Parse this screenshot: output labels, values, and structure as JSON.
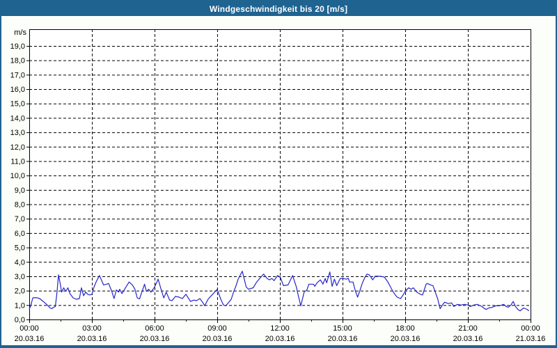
{
  "window": {
    "title": "Windgeschwindigkeit bis 20 [m/s]"
  },
  "colors": {
    "titlebar_bg": "#1F6391",
    "window_border": "#1F6391",
    "title_text": "#FFFFFF",
    "canvas_bg": "#FCFEF9",
    "plot_bg": "#FFFFFF",
    "plot_frame": "#000000",
    "grid": "#000000",
    "axis_text": "#000000",
    "line": "#2424CC"
  },
  "chart_data": {
    "type": "line",
    "title": "Windgeschwindigkeit bis 20 [m/s]",
    "y_unit": "m/s",
    "ylim": [
      0,
      20
    ],
    "xlim_hours": [
      0,
      24
    ],
    "grid": "dashed",
    "legend": "none",
    "y_tick_labels": [
      "0,0",
      "1,0",
      "2,0",
      "3,0",
      "4,0",
      "5,0",
      "6,0",
      "7,0",
      "8,0",
      "9,0",
      "10,0",
      "11,0",
      "12,0",
      "13,0",
      "14,0",
      "15,0",
      "16,0",
      "17,0",
      "18,0",
      "19,0"
    ],
    "x_ticks": [
      {
        "hour": 0,
        "time": "00:00",
        "date": "20.03.16"
      },
      {
        "hour": 3,
        "time": "03:00",
        "date": "20.03.16"
      },
      {
        "hour": 6,
        "time": "06:00",
        "date": "20.03.16"
      },
      {
        "hour": 9,
        "time": "09:00",
        "date": "20.03.16"
      },
      {
        "hour": 12,
        "time": "12:00",
        "date": "20.03.16"
      },
      {
        "hour": 15,
        "time": "15:00",
        "date": "20.03.16"
      },
      {
        "hour": 18,
        "time": "18:00",
        "date": "20.03.16"
      },
      {
        "hour": 21,
        "time": "21:00",
        "date": "20.03.16"
      },
      {
        "hour": 24,
        "time": "00:00",
        "date": "21.03.16"
      }
    ],
    "x_minor_tick_hours": [
      1.5,
      4.5,
      7.5,
      10.5,
      13.5,
      16.5,
      19.5,
      22.5
    ],
    "grid_hours": [
      3,
      6,
      9,
      12,
      15,
      18,
      21
    ],
    "series": [
      {
        "name": "Windgeschwindigkeit",
        "points": [
          [
            0.0,
            0.7
          ],
          [
            0.08,
            1.0
          ],
          [
            0.17,
            1.5
          ],
          [
            0.33,
            1.52
          ],
          [
            0.5,
            1.45
          ],
          [
            0.67,
            1.25
          ],
          [
            0.83,
            1.05
          ],
          [
            1.0,
            0.8
          ],
          [
            1.08,
            0.75
          ],
          [
            1.17,
            0.85
          ],
          [
            1.25,
            0.9
          ],
          [
            1.33,
            1.9
          ],
          [
            1.4,
            3.1
          ],
          [
            1.5,
            2.35
          ],
          [
            1.55,
            1.9
          ],
          [
            1.65,
            2.2
          ],
          [
            1.75,
            1.95
          ],
          [
            1.85,
            2.2
          ],
          [
            1.95,
            1.8
          ],
          [
            2.1,
            1.5
          ],
          [
            2.25,
            1.4
          ],
          [
            2.4,
            1.45
          ],
          [
            2.5,
            2.2
          ],
          [
            2.6,
            1.65
          ],
          [
            2.7,
            1.9
          ],
          [
            2.8,
            1.75
          ],
          [
            2.9,
            1.7
          ],
          [
            3.0,
            1.75
          ],
          [
            3.1,
            2.25
          ],
          [
            3.2,
            2.6
          ],
          [
            3.36,
            3.05
          ],
          [
            3.56,
            2.4
          ],
          [
            3.7,
            2.45
          ],
          [
            3.8,
            2.5
          ],
          [
            3.94,
            2.0
          ],
          [
            4.06,
            1.45
          ],
          [
            4.17,
            2.05
          ],
          [
            4.28,
            1.9
          ],
          [
            4.33,
            2.1
          ],
          [
            4.44,
            1.8
          ],
          [
            4.67,
            2.35
          ],
          [
            4.78,
            2.6
          ],
          [
            4.94,
            2.4
          ],
          [
            5.06,
            2.1
          ],
          [
            5.17,
            1.5
          ],
          [
            5.28,
            1.43
          ],
          [
            5.52,
            2.45
          ],
          [
            5.61,
            1.95
          ],
          [
            5.72,
            2.1
          ],
          [
            5.83,
            1.9
          ],
          [
            6.0,
            2.25
          ],
          [
            6.17,
            2.8
          ],
          [
            6.33,
            2.0
          ],
          [
            6.44,
            1.5
          ],
          [
            6.56,
            1.9
          ],
          [
            6.72,
            1.35
          ],
          [
            6.83,
            1.3
          ],
          [
            7.0,
            1.6
          ],
          [
            7.17,
            1.55
          ],
          [
            7.33,
            1.45
          ],
          [
            7.5,
            1.75
          ],
          [
            7.72,
            1.25
          ],
          [
            7.89,
            1.35
          ],
          [
            8.0,
            1.3
          ],
          [
            8.17,
            1.45
          ],
          [
            8.3,
            1.2
          ],
          [
            8.4,
            0.95
          ],
          [
            8.56,
            1.4
          ],
          [
            8.78,
            1.75
          ],
          [
            9.0,
            2.1
          ],
          [
            9.17,
            1.4
          ],
          [
            9.3,
            1.0
          ],
          [
            9.4,
            0.95
          ],
          [
            9.5,
            1.1
          ],
          [
            9.67,
            1.4
          ],
          [
            9.78,
            1.9
          ],
          [
            9.89,
            2.3
          ],
          [
            10.0,
            2.8
          ],
          [
            10.2,
            3.35
          ],
          [
            10.39,
            2.25
          ],
          [
            10.5,
            2.1
          ],
          [
            10.72,
            2.2
          ],
          [
            10.89,
            2.6
          ],
          [
            11.06,
            2.9
          ],
          [
            11.22,
            3.15
          ],
          [
            11.39,
            2.85
          ],
          [
            11.5,
            2.75
          ],
          [
            11.61,
            2.85
          ],
          [
            11.72,
            2.7
          ],
          [
            11.89,
            3.05
          ],
          [
            12.03,
            2.9
          ],
          [
            12.17,
            2.35
          ],
          [
            12.39,
            2.4
          ],
          [
            12.61,
            3.05
          ],
          [
            12.78,
            2.3
          ],
          [
            12.89,
            1.6
          ],
          [
            13.0,
            0.95
          ],
          [
            13.17,
            1.95
          ],
          [
            13.28,
            2.0
          ],
          [
            13.39,
            2.45
          ],
          [
            13.61,
            2.45
          ],
          [
            13.67,
            2.3
          ],
          [
            13.78,
            2.55
          ],
          [
            13.94,
            2.75
          ],
          [
            14.06,
            2.45
          ],
          [
            14.17,
            2.85
          ],
          [
            14.24,
            2.55
          ],
          [
            14.39,
            3.3
          ],
          [
            14.5,
            2.3
          ],
          [
            14.61,
            2.8
          ],
          [
            14.72,
            2.35
          ],
          [
            14.89,
            2.85
          ],
          [
            15.03,
            2.85
          ],
          [
            15.17,
            2.8
          ],
          [
            15.28,
            2.85
          ],
          [
            15.33,
            2.6
          ],
          [
            15.5,
            2.6
          ],
          [
            15.61,
            2.0
          ],
          [
            15.72,
            1.55
          ],
          [
            15.83,
            2.0
          ],
          [
            15.94,
            2.5
          ],
          [
            16.06,
            2.9
          ],
          [
            16.17,
            3.15
          ],
          [
            16.28,
            3.1
          ],
          [
            16.33,
            3.0
          ],
          [
            16.44,
            2.75
          ],
          [
            16.56,
            3.0
          ],
          [
            16.78,
            3.0
          ],
          [
            17.0,
            2.95
          ],
          [
            17.17,
            2.6
          ],
          [
            17.28,
            2.3
          ],
          [
            17.39,
            2.0
          ],
          [
            17.5,
            1.75
          ],
          [
            17.61,
            1.55
          ],
          [
            17.78,
            1.45
          ],
          [
            17.94,
            1.8
          ],
          [
            18.02,
            2.0
          ],
          [
            18.17,
            2.2
          ],
          [
            18.28,
            2.1
          ],
          [
            18.39,
            2.2
          ],
          [
            18.56,
            1.9
          ],
          [
            18.72,
            1.75
          ],
          [
            18.83,
            1.7
          ],
          [
            19.0,
            2.45
          ],
          [
            19.06,
            2.5
          ],
          [
            19.22,
            2.4
          ],
          [
            19.33,
            2.35
          ],
          [
            19.44,
            1.9
          ],
          [
            19.56,
            1.4
          ],
          [
            19.67,
            0.75
          ],
          [
            19.83,
            1.1
          ],
          [
            19.89,
            1.2
          ],
          [
            20.06,
            1.1
          ],
          [
            20.22,
            1.15
          ],
          [
            20.33,
            0.9
          ],
          [
            20.5,
            1.05
          ],
          [
            20.67,
            1.0
          ],
          [
            20.83,
            1.05
          ],
          [
            21.02,
            1.0
          ],
          [
            21.11,
            0.9
          ],
          [
            21.28,
            1.0
          ],
          [
            21.44,
            1.05
          ],
          [
            21.61,
            0.95
          ],
          [
            21.67,
            0.9
          ],
          [
            21.8,
            0.75
          ],
          [
            21.89,
            0.7
          ],
          [
            22.0,
            0.8
          ],
          [
            22.17,
            0.85
          ],
          [
            22.33,
            0.95
          ],
          [
            22.5,
            0.95
          ],
          [
            22.72,
            1.05
          ],
          [
            22.83,
            0.9
          ],
          [
            22.94,
            0.85
          ],
          [
            23.06,
            1.0
          ],
          [
            23.17,
            1.25
          ],
          [
            23.28,
            0.9
          ],
          [
            23.39,
            0.7
          ],
          [
            23.5,
            0.6
          ],
          [
            23.67,
            0.8
          ],
          [
            23.83,
            0.7
          ],
          [
            23.93,
            0.6
          ]
        ]
      }
    ]
  }
}
